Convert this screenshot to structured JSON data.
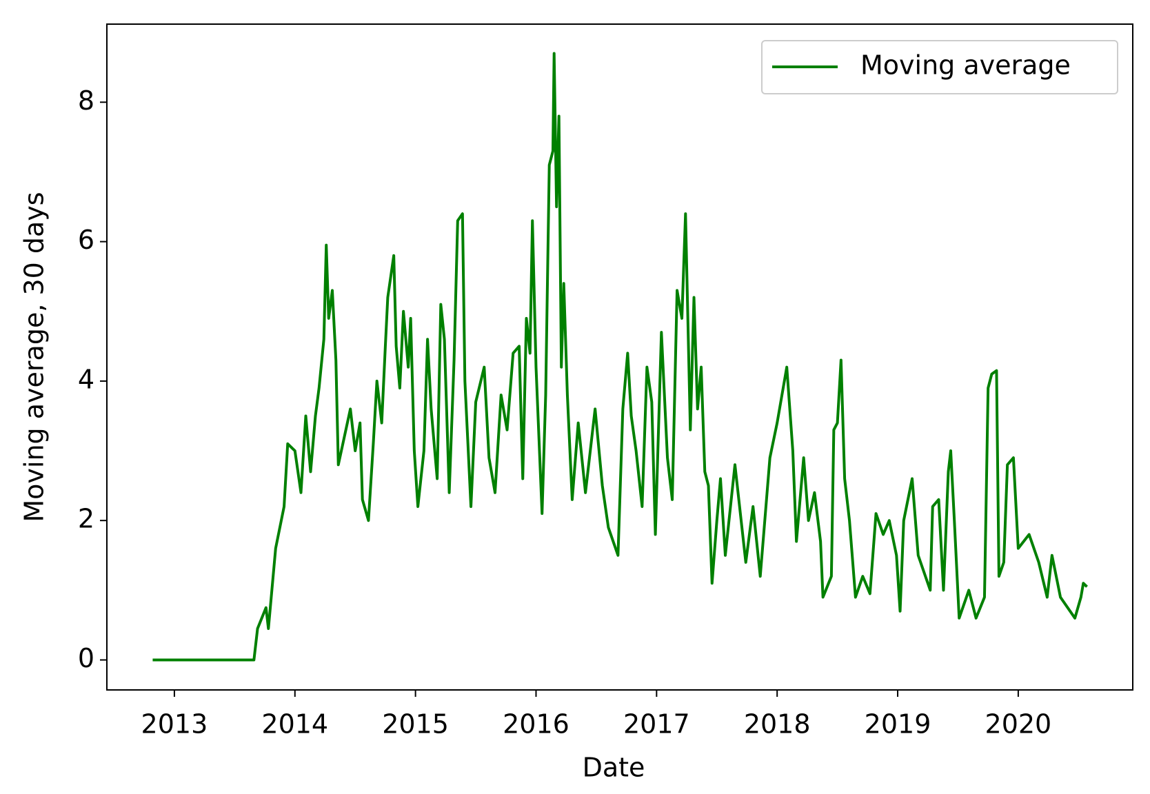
{
  "chart_data": {
    "type": "line",
    "x_label": "Date",
    "y_label": "Moving average, 30 days",
    "xlim": [
      2012.44,
      2020.95
    ],
    "ylim": [
      -0.43,
      9.12
    ],
    "xticks": [
      2013,
      2014,
      2015,
      2016,
      2017,
      2018,
      2019,
      2020
    ],
    "yticks": [
      0,
      2,
      4,
      6,
      8
    ],
    "grid": false,
    "legend": "upper right",
    "series": [
      {
        "name": "Moving average",
        "color": "#008000",
        "x": [
          2012.82,
          2013.66,
          2013.69,
          2013.76,
          2013.78,
          2013.84,
          2013.91,
          2013.94,
          2014.0,
          2014.05,
          2014.09,
          2014.13,
          2014.17,
          2014.2,
          2014.24,
          2014.26,
          2014.28,
          2014.31,
          2014.34,
          2014.36,
          2014.41,
          2014.46,
          2014.5,
          2014.54,
          2014.56,
          2014.61,
          2014.65,
          2014.68,
          2014.72,
          2014.75,
          2014.77,
          2014.82,
          2014.84,
          2014.87,
          2014.9,
          2014.94,
          2014.96,
          2014.99,
          2015.02,
          2015.07,
          2015.1,
          2015.13,
          2015.18,
          2015.21,
          2015.24,
          2015.28,
          2015.32,
          2015.35,
          2015.39,
          2015.41,
          2015.46,
          2015.5,
          2015.57,
          2015.61,
          2015.66,
          2015.71,
          2015.76,
          2015.81,
          2015.86,
          2015.89,
          2015.92,
          2015.95,
          2015.97,
          2016.0,
          2016.05,
          2016.08,
          2016.11,
          2016.14,
          2016.15,
          2016.17,
          2016.19,
          2016.21,
          2016.23,
          2016.26,
          2016.3,
          2016.35,
          2016.41,
          2016.49,
          2016.55,
          2016.6,
          2016.68,
          2016.72,
          2016.76,
          2016.79,
          2016.83,
          2016.88,
          2016.92,
          2016.96,
          2016.99,
          2017.04,
          2017.09,
          2017.13,
          2017.17,
          2017.21,
          2017.24,
          2017.28,
          2017.31,
          2017.34,
          2017.37,
          2017.4,
          2017.43,
          2017.46,
          2017.5,
          2017.53,
          2017.57,
          2017.65,
          2017.74,
          2017.8,
          2017.86,
          2017.94,
          2018.0,
          2018.08,
          2018.13,
          2018.16,
          2018.22,
          2018.26,
          2018.31,
          2018.36,
          2018.38,
          2018.45,
          2018.47,
          2018.5,
          2018.53,
          2018.56,
          2018.6,
          2018.65,
          2018.71,
          2018.77,
          2018.82,
          2018.88,
          2018.93,
          2018.99,
          2019.02,
          2019.05,
          2019.12,
          2019.17,
          2019.23,
          2019.27,
          2019.29,
          2019.34,
          2019.38,
          2019.42,
          2019.44,
          2019.47,
          2019.51,
          2019.59,
          2019.65,
          2019.72,
          2019.75,
          2019.78,
          2019.82,
          2019.84,
          2019.88,
          2019.91,
          2019.96,
          2020.0,
          2020.09,
          2020.17,
          2020.24,
          2020.28,
          2020.35,
          2020.47,
          2020.52,
          2020.54,
          2020.57
        ],
        "values": [
          0,
          0,
          0.45,
          0.75,
          0.45,
          1.6,
          2.2,
          3.1,
          3.0,
          2.4,
          3.5,
          2.7,
          3.5,
          3.9,
          4.6,
          5.95,
          4.9,
          5.3,
          4.3,
          2.8,
          3.2,
          3.6,
          3.0,
          3.4,
          2.3,
          2.0,
          3.1,
          4.0,
          3.4,
          4.5,
          5.2,
          5.8,
          4.5,
          3.9,
          5.0,
          4.2,
          4.9,
          3.0,
          2.2,
          3.0,
          4.6,
          3.6,
          2.6,
          5.1,
          4.6,
          2.4,
          4.3,
          6.3,
          6.4,
          4.0,
          2.2,
          3.7,
          4.2,
          2.9,
          2.4,
          3.8,
          3.3,
          4.4,
          4.5,
          2.6,
          4.9,
          4.4,
          6.3,
          4.2,
          2.1,
          3.8,
          7.1,
          7.3,
          8.7,
          6.5,
          7.8,
          4.2,
          5.4,
          3.8,
          2.3,
          3.4,
          2.4,
          3.6,
          2.5,
          1.9,
          1.5,
          3.6,
          4.4,
          3.5,
          3.0,
          2.2,
          4.2,
          3.7,
          1.8,
          4.7,
          2.9,
          2.3,
          5.3,
          4.9,
          6.4,
          3.3,
          5.2,
          3.6,
          4.2,
          2.7,
          2.5,
          1.1,
          2.0,
          2.6,
          1.5,
          2.8,
          1.4,
          2.2,
          1.2,
          2.9,
          3.4,
          4.2,
          3.0,
          1.7,
          2.9,
          2.0,
          2.4,
          1.7,
          0.9,
          1.2,
          3.3,
          3.4,
          4.3,
          2.6,
          2.0,
          0.9,
          1.2,
          0.95,
          2.1,
          1.8,
          2.0,
          1.5,
          0.7,
          2.0,
          2.6,
          1.5,
          1.2,
          1.0,
          2.2,
          2.3,
          1.0,
          2.7,
          3.0,
          2.0,
          0.6,
          1.0,
          0.6,
          0.9,
          3.9,
          4.1,
          4.15,
          1.2,
          1.4,
          2.8,
          2.9,
          1.6,
          1.8,
          1.4,
          0.9,
          1.5,
          0.9,
          0.6,
          0.9,
          1.1,
          1.05
        ]
      }
    ]
  }
}
